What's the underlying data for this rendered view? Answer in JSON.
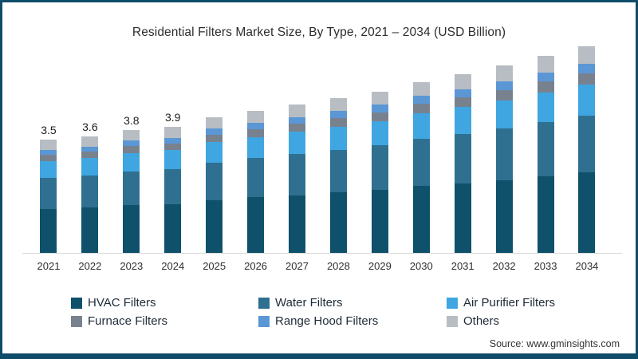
{
  "title": "Residential Filters Market Size, By Type, 2021 – 2034 (USD Billion)",
  "source": "Source: www.gminsights.com",
  "colors": {
    "frame_border": "#0f4c6a",
    "axis_line": "#d9d9d9",
    "background": "#ffffff"
  },
  "chart_data": {
    "type": "bar",
    "stacked": true,
    "title": "Residential Filters Market Size, By Type, 2021 – 2034 (USD Billion)",
    "unit": "USD Billion",
    "xlabel": "",
    "ylabel": "",
    "grid": false,
    "legend_position": "bottom",
    "ylim": [
      0,
      6.6
    ],
    "categories": [
      "2021",
      "2022",
      "2023",
      "2024",
      "2025",
      "2026",
      "2027",
      "2028",
      "2029",
      "2030",
      "2031",
      "2032",
      "2033",
      "2034"
    ],
    "series": [
      {
        "name": "HVAC Filters",
        "color": "#0f506b",
        "values": [
          1.36,
          1.4,
          1.48,
          1.52,
          1.64,
          1.72,
          1.79,
          1.87,
          1.95,
          2.07,
          2.16,
          2.26,
          2.38,
          2.5
        ]
      },
      {
        "name": "Water Filters",
        "color": "#2f7090",
        "values": [
          0.96,
          0.99,
          1.05,
          1.07,
          1.16,
          1.21,
          1.27,
          1.32,
          1.38,
          1.46,
          1.53,
          1.6,
          1.68,
          1.76
        ]
      },
      {
        "name": "Air Purifier Filters",
        "color": "#3fa6e1",
        "values": [
          0.53,
          0.54,
          0.57,
          0.59,
          0.63,
          0.66,
          0.69,
          0.72,
          0.75,
          0.8,
          0.83,
          0.87,
          0.92,
          0.96
        ]
      },
      {
        "name": "Furnace Filters",
        "color": "#78828f",
        "values": [
          0.19,
          0.2,
          0.21,
          0.21,
          0.23,
          0.24,
          0.25,
          0.26,
          0.28,
          0.29,
          0.31,
          0.32,
          0.34,
          0.35
        ]
      },
      {
        "name": "Range Hood Filters",
        "color": "#5b97d5",
        "values": [
          0.16,
          0.16,
          0.17,
          0.18,
          0.19,
          0.2,
          0.21,
          0.22,
          0.23,
          0.24,
          0.25,
          0.26,
          0.27,
          0.29
        ]
      },
      {
        "name": "Others",
        "color": "#b7bdc3",
        "values": [
          0.3,
          0.31,
          0.32,
          0.33,
          0.35,
          0.37,
          0.39,
          0.41,
          0.41,
          0.44,
          0.47,
          0.49,
          0.51,
          0.54
        ]
      }
    ],
    "totals": [
      3.5,
      3.6,
      3.8,
      3.9,
      4.2,
      4.4,
      4.6,
      4.8,
      5.0,
      5.3,
      5.55,
      5.8,
      6.1,
      6.4
    ],
    "bar_labels": {
      "2021": "3.5",
      "2022": "3.6",
      "2023": "3.8",
      "2024": "3.9"
    }
  }
}
